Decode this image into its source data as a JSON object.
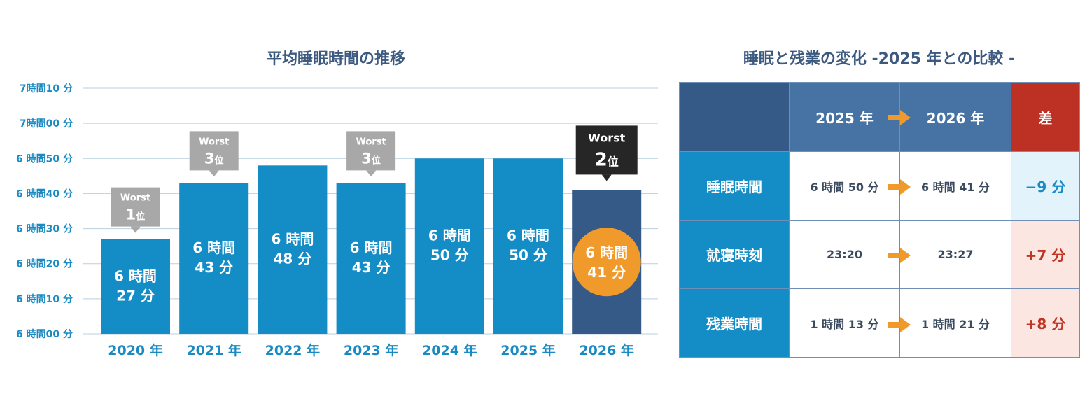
{
  "left_title": "平均睡眠時間の推移",
  "right_title": "睡眠と残業の変化 -2025 年との比較 -",
  "colors": {
    "bar": "#148cc5",
    "bar_highlight": "#365a87",
    "highlight_circle": "#f19a2c",
    "grid": "#b8cfe0",
    "axis_text": "#1a8ac2",
    "badge_gray": "#a8a8a8",
    "badge_dark": "#262626",
    "arrow": "#f19a2c"
  },
  "chart_data": {
    "type": "bar",
    "title": "平均睡眠時間の推移",
    "categories": [
      "2020 年",
      "2021 年",
      "2022 年",
      "2023 年",
      "2024 年",
      "2025 年",
      "2026 年"
    ],
    "values": [
      387,
      403,
      408,
      403,
      410,
      410,
      401
    ],
    "value_unit": "minutes",
    "ylim": [
      360,
      430
    ],
    "yticks": [
      {
        "value": 430,
        "label": "7時間10 分"
      },
      {
        "value": 420,
        "label": "7時間00 分"
      },
      {
        "value": 410,
        "label": "6 時間50 分"
      },
      {
        "value": 400,
        "label": "6 時間40 分"
      },
      {
        "value": 390,
        "label": "6 時間30 分"
      },
      {
        "value": 380,
        "label": "6 時間20 分"
      },
      {
        "value": 370,
        "label": "6 時間10 分"
      },
      {
        "value": 360,
        "label": "6 時間00 分"
      }
    ],
    "bar_labels": [
      [
        "6 時間",
        "27 分"
      ],
      [
        "6 時間",
        "43 分"
      ],
      [
        "6 時間",
        "48 分"
      ],
      [
        "6 時間",
        "43 分"
      ],
      [
        "6 時間",
        "50 分"
      ],
      [
        "6 時間",
        "50 分"
      ],
      [
        "6 時間",
        "41 分"
      ]
    ],
    "highlight_index": 6,
    "badges": [
      {
        "index": 0,
        "top": "Worst",
        "rank": "1",
        "suffix": "位",
        "style": "gray"
      },
      {
        "index": 1,
        "top": "Worst",
        "rank": "3",
        "suffix": "位",
        "style": "gray"
      },
      {
        "index": 3,
        "top": "Worst",
        "rank": "3",
        "suffix": "位",
        "style": "gray"
      },
      {
        "index": 6,
        "top": "Worst",
        "rank": "2",
        "suffix": "位",
        "style": "dark"
      }
    ],
    "grid": true
  },
  "table": {
    "header": {
      "from": "2025 年",
      "to": "2026 年",
      "diff": "差"
    },
    "rows": [
      {
        "label": "睡眠時間",
        "from": "6 時間 50 分",
        "to": "6 時間 41 分",
        "diff": "−9 分",
        "sign": "neg"
      },
      {
        "label": "就寝時刻",
        "from": "23:20",
        "to": "23:27",
        "diff": "+7 分",
        "sign": "pos"
      },
      {
        "label": "残業時間",
        "from": "1 時間 13 分",
        "to": "1 時間 21 分",
        "diff": "+8 分",
        "sign": "pos"
      }
    ]
  }
}
